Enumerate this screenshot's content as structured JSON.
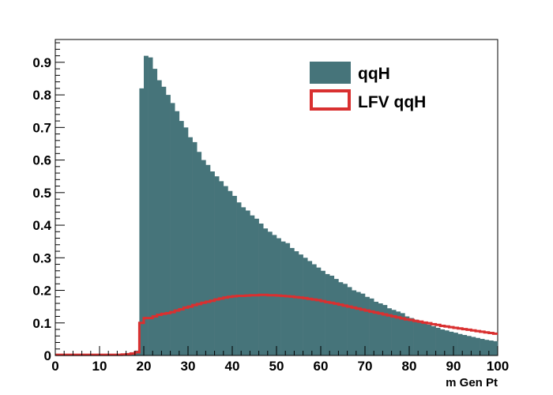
{
  "chart_data": {
    "type": "bar",
    "title": "",
    "xlabel": "m Gen Pt",
    "ylabel": "",
    "xlim": [
      0,
      100
    ],
    "ylim": [
      0,
      0.97
    ],
    "bin_width": 1,
    "x_ticks": [
      0,
      10,
      20,
      30,
      40,
      50,
      60,
      70,
      80,
      90,
      100
    ],
    "x_tick_labels": [
      "0",
      "10",
      "20",
      "30",
      "40",
      "50",
      "60",
      "70",
      "80",
      "90",
      "100"
    ],
    "y_ticks": [
      0,
      0.1,
      0.2,
      0.3,
      0.4,
      0.5,
      0.6,
      0.7,
      0.8,
      0.9
    ],
    "y_tick_labels": [
      "0",
      "0.1",
      "0.2",
      "0.3",
      "0.4",
      "0.5",
      "0.6",
      "0.7",
      "0.8",
      "0.9"
    ],
    "grid": false,
    "legend_position": "top-right",
    "series": [
      {
        "name": "qqH",
        "style": "filled",
        "color": "#46747a",
        "values": [
          0.002,
          0.002,
          0.002,
          0.002,
          0.002,
          0.002,
          0.002,
          0.002,
          0.002,
          0.002,
          0.002,
          0.002,
          0.002,
          0.002,
          0.002,
          0.003,
          0.006,
          0.01,
          0.015,
          0.82,
          0.92,
          0.915,
          0.88,
          0.845,
          0.825,
          0.8,
          0.775,
          0.75,
          0.72,
          0.7,
          0.67,
          0.655,
          0.625,
          0.6,
          0.585,
          0.565,
          0.55,
          0.535,
          0.52,
          0.505,
          0.49,
          0.47,
          0.455,
          0.445,
          0.43,
          0.42,
          0.405,
          0.39,
          0.38,
          0.37,
          0.36,
          0.35,
          0.345,
          0.33,
          0.32,
          0.31,
          0.3,
          0.29,
          0.28,
          0.27,
          0.26,
          0.25,
          0.245,
          0.235,
          0.225,
          0.22,
          0.21,
          0.2,
          0.195,
          0.19,
          0.18,
          0.175,
          0.165,
          0.16,
          0.155,
          0.145,
          0.14,
          0.135,
          0.13,
          0.12,
          0.115,
          0.11,
          0.105,
          0.1,
          0.095,
          0.09,
          0.085,
          0.08,
          0.077,
          0.073,
          0.07,
          0.066,
          0.063,
          0.06,
          0.057,
          0.054,
          0.051,
          0.048,
          0.046,
          0.044
        ]
      },
      {
        "name": "LFV qqH",
        "style": "step",
        "color": "#d93030",
        "values": [
          0.002,
          0.002,
          0.002,
          0.002,
          0.002,
          0.002,
          0.002,
          0.002,
          0.002,
          0.002,
          0.002,
          0.002,
          0.002,
          0.002,
          0.002,
          0.003,
          0.004,
          0.006,
          0.01,
          0.1,
          0.115,
          0.115,
          0.12,
          0.125,
          0.128,
          0.13,
          0.133,
          0.138,
          0.142,
          0.147,
          0.15,
          0.155,
          0.158,
          0.162,
          0.165,
          0.168,
          0.172,
          0.175,
          0.178,
          0.18,
          0.182,
          0.183,
          0.183,
          0.184,
          0.185,
          0.185,
          0.186,
          0.186,
          0.185,
          0.185,
          0.184,
          0.183,
          0.182,
          0.181,
          0.179,
          0.178,
          0.176,
          0.174,
          0.172,
          0.17,
          0.167,
          0.164,
          0.162,
          0.159,
          0.156,
          0.153,
          0.15,
          0.147,
          0.144,
          0.141,
          0.138,
          0.135,
          0.132,
          0.129,
          0.126,
          0.123,
          0.12,
          0.117,
          0.114,
          0.111,
          0.109,
          0.106,
          0.104,
          0.101,
          0.099,
          0.096,
          0.094,
          0.091,
          0.089,
          0.087,
          0.085,
          0.083,
          0.081,
          0.079,
          0.077,
          0.075,
          0.073,
          0.071,
          0.069,
          0.067
        ]
      }
    ]
  }
}
